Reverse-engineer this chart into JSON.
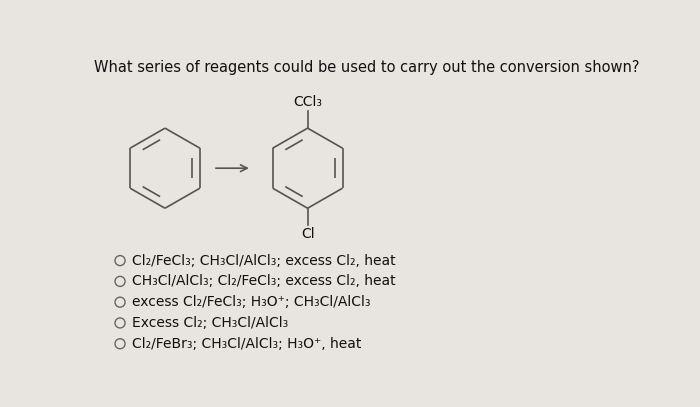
{
  "background_color": "#e8e4df",
  "title": "What series of reagents could be used to carry out the conversion shown?",
  "title_fontsize": 10.5,
  "options": [
    "Cl₂/FeCl₃; CH₃Cl/AlCl₃; excess Cl₂, heat",
    "CH₃Cl/AlCl₃; Cl₂/FeCl₃; excess Cl₂, heat",
    "excess Cl₂/FeCl₃; H₃O⁺; CH₃Cl/AlCl₃",
    "Excess Cl₂; CH₃Cl/AlCl₃",
    "Cl₂/FeBr₃; CH₃Cl/AlCl₃; H₃O⁺, heat"
  ],
  "line_color": "#555550",
  "text_color": "#111111",
  "option_fontsize": 10.0
}
